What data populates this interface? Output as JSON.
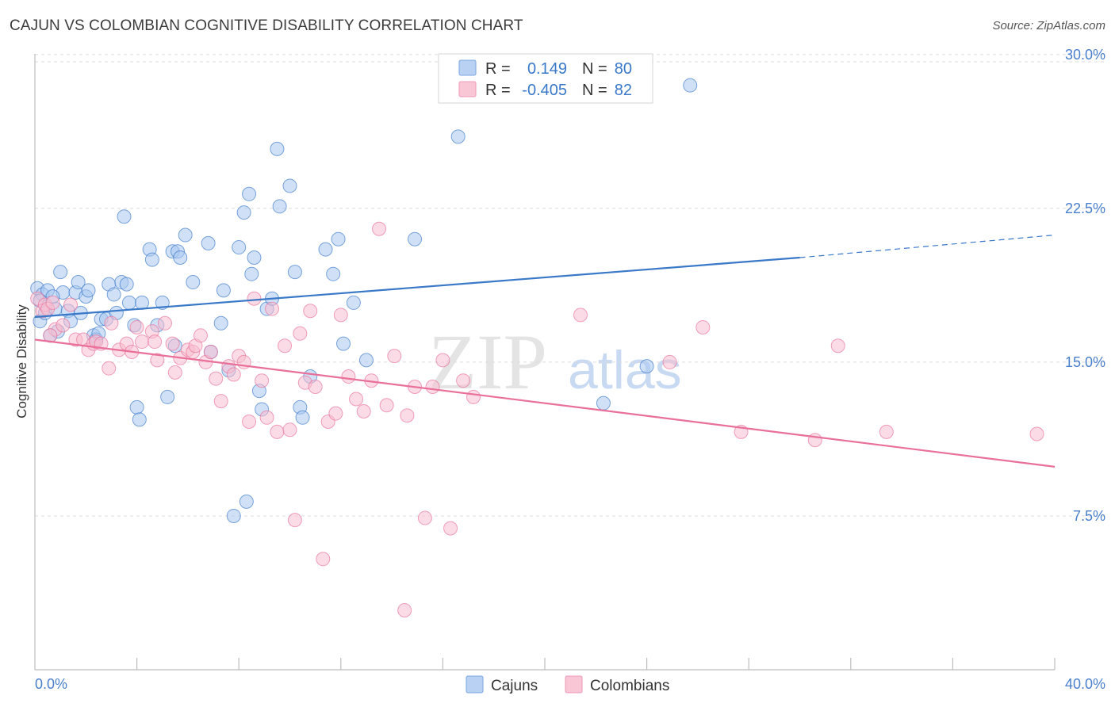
{
  "title": "CAJUN VS COLOMBIAN COGNITIVE DISABILITY CORRELATION CHART",
  "source": "Source: ZipAtlas.com",
  "watermark": {
    "zip": "ZIP",
    "atlas": "atlas"
  },
  "legend": {
    "r_label": "R =",
    "n_label": "N =",
    "rows": [
      {
        "r": "0.149",
        "n": "80",
        "color": "#8fb6ea"
      },
      {
        "r": "-0.405",
        "n": "82",
        "color": "#f2a9c0"
      }
    ]
  },
  "bottom_legend": [
    "Cajuns",
    "Colombians"
  ],
  "chart_data": {
    "type": "scatter",
    "title": "CAJUN VS COLOMBIAN COGNITIVE DISABILITY CORRELATION CHART",
    "xlabel": "",
    "ylabel": "Cognitive Disability",
    "xlim": [
      0,
      40
    ],
    "ylim": [
      0,
      31
    ],
    "x_tick_labels": [
      "0.0%",
      "40.0%"
    ],
    "y_ticks": [
      7.5,
      15.0,
      22.5,
      30.0
    ],
    "y_tick_labels": [
      "7.5%",
      "15.0%",
      "22.5%",
      "30.0%"
    ],
    "grid": true,
    "colors": {
      "cajuns": "#3a78c8",
      "colombians": "#e8709a",
      "cajuns_fill": "#a9c8f0",
      "colombians_fill": "#f7bdd0"
    },
    "series": [
      {
        "name": "Cajuns",
        "r": 0.149,
        "n": 80,
        "trend": {
          "x": [
            0,
            30.0
          ],
          "y": [
            17.2,
            20.1
          ],
          "dashed_to": [
            40,
            21.2
          ]
        },
        "points": [
          [
            0.1,
            18.6
          ],
          [
            0.2,
            17.0
          ],
          [
            0.3,
            18.3
          ],
          [
            0.4,
            17.4
          ],
          [
            0.5,
            18.5
          ],
          [
            0.6,
            16.3
          ],
          [
            0.8,
            17.6
          ],
          [
            0.9,
            16.5
          ],
          [
            1.0,
            19.4
          ],
          [
            1.1,
            18.4
          ],
          [
            1.3,
            17.5
          ],
          [
            1.4,
            17.0
          ],
          [
            1.6,
            18.4
          ],
          [
            1.7,
            18.9
          ],
          [
            1.8,
            17.4
          ],
          [
            2.0,
            18.2
          ],
          [
            2.1,
            18.5
          ],
          [
            2.3,
            16.3
          ],
          [
            2.4,
            16.1
          ],
          [
            2.5,
            16.4
          ],
          [
            2.6,
            17.1
          ],
          [
            2.8,
            17.1
          ],
          [
            2.9,
            18.8
          ],
          [
            3.1,
            18.3
          ],
          [
            3.2,
            17.4
          ],
          [
            3.4,
            18.9
          ],
          [
            3.5,
            22.1
          ],
          [
            3.6,
            18.8
          ],
          [
            3.7,
            17.9
          ],
          [
            3.9,
            16.8
          ],
          [
            4.0,
            12.8
          ],
          [
            4.1,
            12.2
          ],
          [
            4.2,
            17.9
          ],
          [
            4.5,
            20.5
          ],
          [
            4.6,
            20.0
          ],
          [
            4.8,
            16.8
          ],
          [
            5.0,
            17.9
          ],
          [
            5.2,
            13.3
          ],
          [
            5.4,
            20.4
          ],
          [
            5.5,
            15.8
          ],
          [
            5.6,
            20.4
          ],
          [
            5.7,
            20.1
          ],
          [
            5.9,
            21.2
          ],
          [
            6.2,
            18.9
          ],
          [
            6.8,
            20.8
          ],
          [
            6.9,
            15.5
          ],
          [
            7.3,
            16.9
          ],
          [
            7.4,
            18.5
          ],
          [
            7.6,
            14.6
          ],
          [
            7.8,
            7.5
          ],
          [
            8.0,
            20.6
          ],
          [
            8.2,
            22.3
          ],
          [
            8.3,
            8.2
          ],
          [
            8.4,
            23.2
          ],
          [
            8.5,
            19.3
          ],
          [
            8.6,
            20.1
          ],
          [
            8.8,
            13.6
          ],
          [
            8.9,
            12.7
          ],
          [
            9.1,
            17.6
          ],
          [
            9.3,
            18.1
          ],
          [
            9.5,
            25.4
          ],
          [
            9.6,
            22.6
          ],
          [
            10.0,
            23.6
          ],
          [
            10.2,
            19.4
          ],
          [
            10.4,
            12.8
          ],
          [
            10.5,
            12.3
          ],
          [
            10.8,
            14.3
          ],
          [
            11.4,
            20.5
          ],
          [
            11.7,
            19.3
          ],
          [
            11.9,
            21.0
          ],
          [
            12.1,
            15.9
          ],
          [
            12.5,
            17.9
          ],
          [
            13.0,
            15.1
          ],
          [
            14.9,
            21.0
          ],
          [
            16.6,
            26.0
          ],
          [
            22.3,
            13.0
          ],
          [
            24.0,
            14.8
          ],
          [
            25.7,
            28.5
          ],
          [
            0.2,
            18.0
          ],
          [
            0.7,
            18.2
          ]
        ]
      },
      {
        "name": "Colombians",
        "r": -0.405,
        "n": 82,
        "trend": {
          "x": [
            0,
            40
          ],
          "y": [
            16.1,
            9.9
          ]
        },
        "points": [
          [
            0.1,
            18.1
          ],
          [
            0.3,
            17.5
          ],
          [
            0.4,
            17.8
          ],
          [
            0.5,
            17.6
          ],
          [
            0.7,
            17.9
          ],
          [
            0.8,
            16.6
          ],
          [
            1.1,
            16.8
          ],
          [
            1.4,
            17.8
          ],
          [
            1.6,
            16.1
          ],
          [
            1.9,
            16.1
          ],
          [
            2.1,
            15.6
          ],
          [
            2.3,
            15.9
          ],
          [
            2.4,
            16.0
          ],
          [
            2.6,
            15.9
          ],
          [
            2.9,
            14.7
          ],
          [
            3.0,
            16.9
          ],
          [
            3.3,
            15.6
          ],
          [
            3.6,
            15.9
          ],
          [
            3.8,
            15.5
          ],
          [
            4.0,
            16.7
          ],
          [
            4.2,
            16.0
          ],
          [
            4.6,
            16.5
          ],
          [
            4.7,
            16.0
          ],
          [
            4.8,
            15.1
          ],
          [
            5.1,
            16.9
          ],
          [
            5.4,
            15.9
          ],
          [
            5.5,
            14.5
          ],
          [
            5.7,
            15.2
          ],
          [
            6.0,
            15.6
          ],
          [
            6.2,
            15.5
          ],
          [
            6.3,
            15.8
          ],
          [
            6.5,
            16.3
          ],
          [
            6.7,
            15.0
          ],
          [
            6.9,
            15.5
          ],
          [
            7.1,
            14.2
          ],
          [
            7.3,
            13.1
          ],
          [
            7.6,
            14.8
          ],
          [
            7.8,
            14.4
          ],
          [
            8.0,
            15.3
          ],
          [
            8.2,
            15.0
          ],
          [
            8.4,
            12.1
          ],
          [
            8.6,
            18.1
          ],
          [
            8.9,
            14.1
          ],
          [
            9.1,
            12.3
          ],
          [
            9.3,
            17.6
          ],
          [
            9.5,
            11.6
          ],
          [
            9.8,
            15.8
          ],
          [
            10.0,
            11.7
          ],
          [
            10.2,
            7.3
          ],
          [
            10.4,
            16.4
          ],
          [
            10.6,
            14.0
          ],
          [
            10.8,
            17.5
          ],
          [
            11.0,
            13.8
          ],
          [
            11.3,
            5.4
          ],
          [
            11.5,
            12.1
          ],
          [
            11.8,
            12.5
          ],
          [
            12.0,
            17.3
          ],
          [
            12.3,
            14.3
          ],
          [
            12.6,
            13.2
          ],
          [
            12.9,
            12.6
          ],
          [
            13.2,
            14.1
          ],
          [
            13.5,
            21.5
          ],
          [
            13.8,
            12.9
          ],
          [
            14.1,
            15.3
          ],
          [
            14.6,
            12.4
          ],
          [
            14.9,
            13.8
          ],
          [
            15.3,
            7.4
          ],
          [
            15.6,
            13.8
          ],
          [
            16.0,
            15.1
          ],
          [
            16.3,
            6.9
          ],
          [
            16.8,
            14.1
          ],
          [
            17.2,
            13.3
          ],
          [
            21.4,
            17.3
          ],
          [
            24.9,
            15.0
          ],
          [
            26.2,
            16.7
          ],
          [
            27.7,
            11.6
          ],
          [
            30.6,
            11.2
          ],
          [
            31.5,
            15.8
          ],
          [
            33.4,
            11.6
          ],
          [
            39.3,
            11.5
          ],
          [
            14.5,
            2.9
          ],
          [
            0.6,
            16.3
          ]
        ]
      }
    ]
  }
}
